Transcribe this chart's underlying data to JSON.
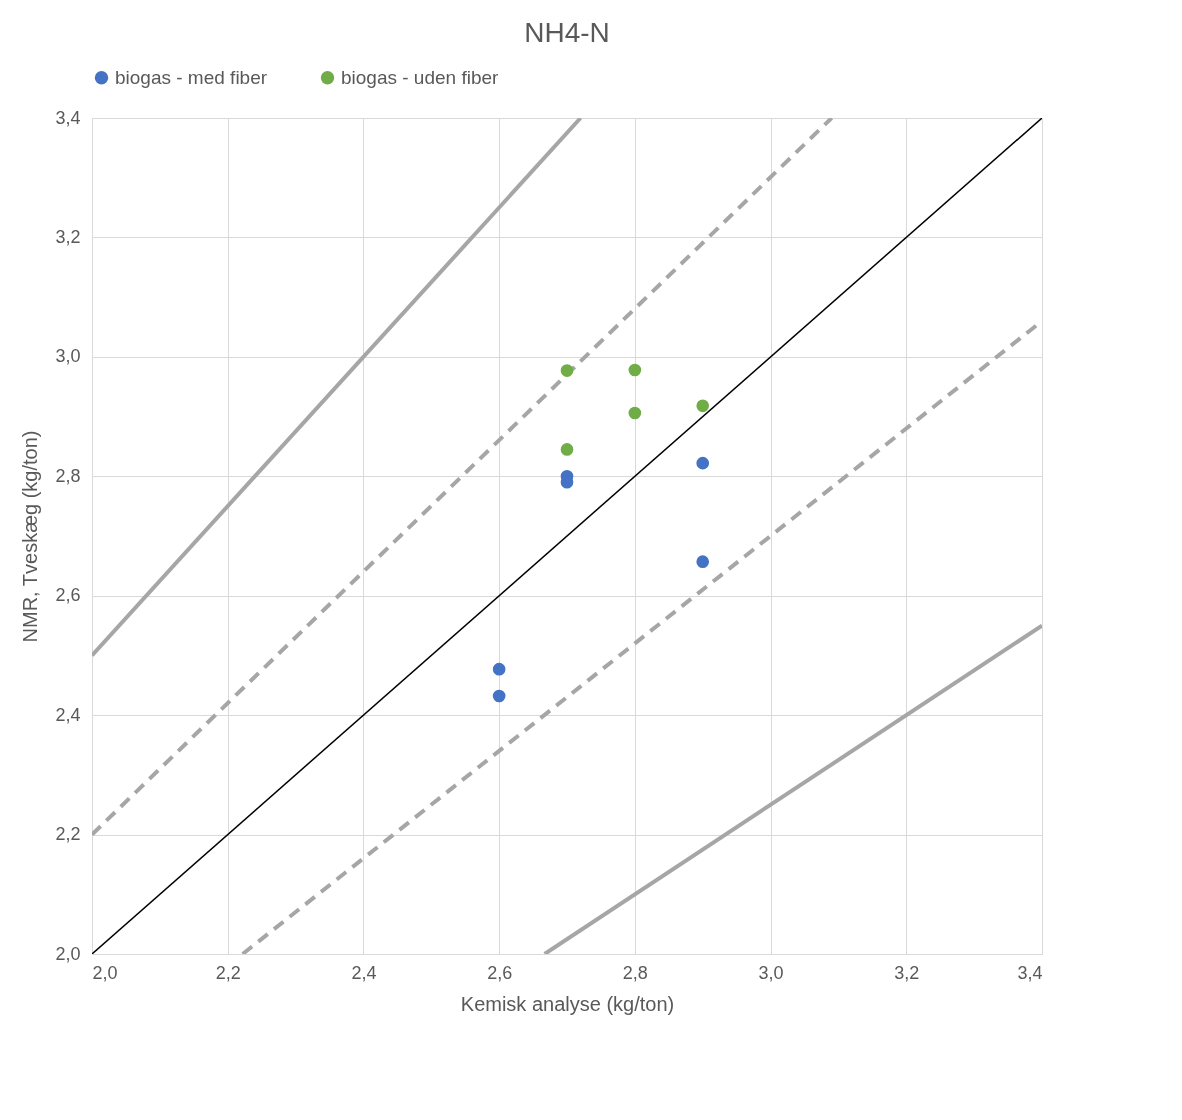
{
  "chart_data": {
    "type": "scatter",
    "title": "NH4-N",
    "xlabel": "Kemisk analyse (kg/ton)",
    "ylabel": "NMR, Tveskæg (kg/ton)",
    "xlim": [
      2.0,
      3.4
    ],
    "ylim": [
      2.0,
      3.4
    ],
    "xticks": [
      {
        "value": 2.0,
        "label": "2,0"
      },
      {
        "value": 2.2,
        "label": "2,2"
      },
      {
        "value": 2.4,
        "label": "2,4"
      },
      {
        "value": 2.6,
        "label": "2,6"
      },
      {
        "value": 2.8,
        "label": "2,8"
      },
      {
        "value": 3.0,
        "label": "3,0"
      },
      {
        "value": 3.2,
        "label": "3,2"
      },
      {
        "value": 3.4,
        "label": "3,4"
      }
    ],
    "yticks": [
      {
        "value": 2.0,
        "label": "2,0"
      },
      {
        "value": 2.2,
        "label": "2,2"
      },
      {
        "value": 2.4,
        "label": "2,4"
      },
      {
        "value": 2.6,
        "label": "2,6"
      },
      {
        "value": 2.8,
        "label": "2,8"
      },
      {
        "value": 3.0,
        "label": "3,0"
      },
      {
        "value": 3.2,
        "label": "3,2"
      },
      {
        "value": 3.4,
        "label": "3,4"
      }
    ],
    "grid": true,
    "legend": "top",
    "series": [
      {
        "type": "line",
        "marker": "none",
        "color": "#a6a6a6",
        "line_style": "solid",
        "x": [
          2.0,
          2.72
        ],
        "values": [
          2.5,
          3.4
        ]
      },
      {
        "type": "line",
        "marker": "none",
        "color": "#a6a6a6",
        "line_style": "dashed",
        "x": [
          2.0,
          3.09
        ],
        "values": [
          2.2,
          3.4
        ]
      },
      {
        "type": "line",
        "marker": "none",
        "color": "#000000",
        "line_style": "solid",
        "x": [
          2.0,
          3.4
        ],
        "values": [
          2.0,
          3.4
        ]
      },
      {
        "type": "line",
        "marker": "none",
        "color": "#a6a6a6",
        "line_style": "dashed",
        "x": [
          2.222,
          3.4
        ],
        "values": [
          2.0,
          3.06
        ]
      },
      {
        "type": "line",
        "marker": "none",
        "color": "#a6a6a6",
        "line_style": "solid",
        "x": [
          2.667,
          3.4
        ],
        "values": [
          2.0,
          2.55
        ]
      },
      {
        "name": "biogas - med fiber",
        "marker": "circle",
        "color": "#4472c4",
        "x": [
          2.6,
          2.6,
          2.7,
          2.7,
          2.9,
          2.9
        ],
        "values": [
          2.477,
          2.432,
          2.8,
          2.79,
          2.822,
          2.657
        ]
      },
      {
        "name": "biogas - uden fiber",
        "marker": "circle",
        "color": "#70ad47",
        "x": [
          2.7,
          2.7,
          2.8,
          2.8,
          2.9
        ],
        "values": [
          2.977,
          2.845,
          2.978,
          2.906,
          2.918
        ]
      }
    ]
  }
}
